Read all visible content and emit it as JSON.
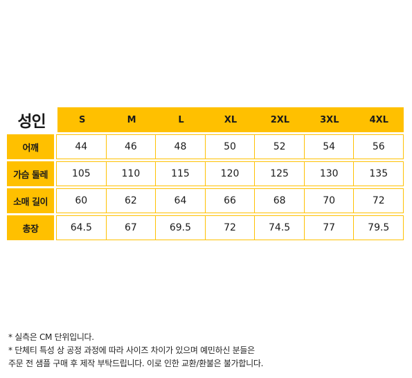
{
  "table": {
    "category": "성인",
    "sizes": [
      "S",
      "M",
      "L",
      "XL",
      "2XL",
      "3XL",
      "4XL"
    ],
    "rows": [
      {
        "label": "어깨",
        "values": [
          "44",
          "46",
          "48",
          "50",
          "52",
          "54",
          "56"
        ]
      },
      {
        "label": "가슴 둘레",
        "values": [
          "105",
          "110",
          "115",
          "120",
          "125",
          "130",
          "135"
        ]
      },
      {
        "label": "소매 길이",
        "values": [
          "60",
          "62",
          "64",
          "66",
          "68",
          "70",
          "72"
        ]
      },
      {
        "label": "총장",
        "values": [
          "64.5",
          "67",
          "69.5",
          "72",
          "74.5",
          "77",
          "79.5"
        ]
      }
    ]
  },
  "notes": [
    "* 실측은 CM 단위입니다.",
    "* 단체티 특성 상 공정 과정에 따라 사이즈 차이가 있으며 예민하신 분들은",
    "주문 전 샘플 구매 후 제작 부탁드립니다. 이로 인한 교환/환불은 불가합니다."
  ],
  "colors": {
    "accent": "#ffc000"
  }
}
